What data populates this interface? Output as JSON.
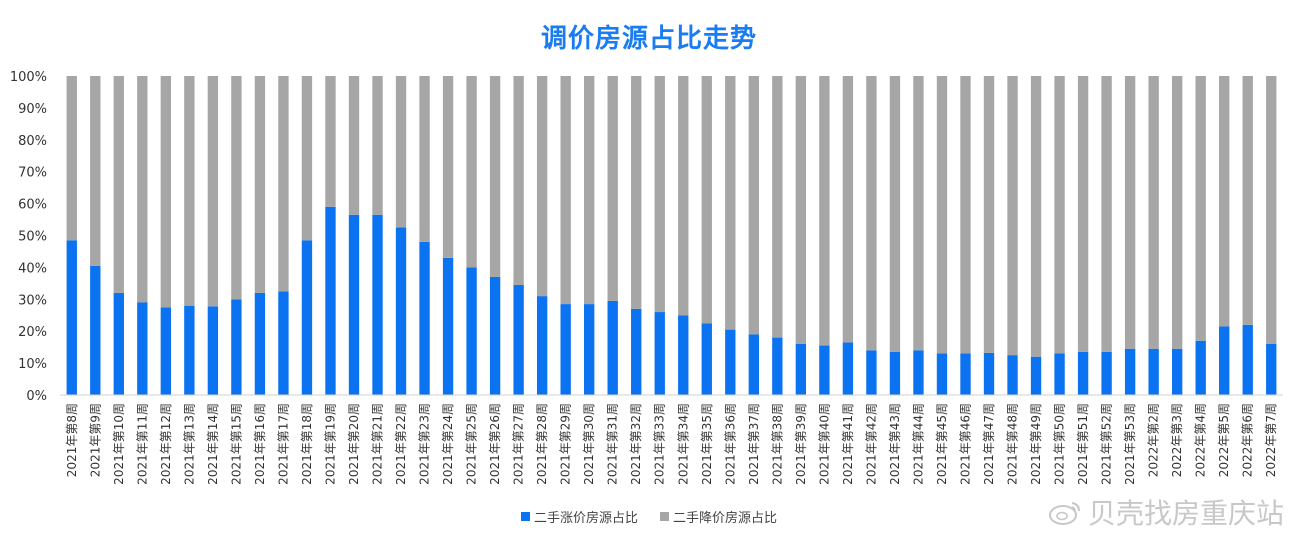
{
  "title": "调价房源占比走势",
  "watermark": "贝壳找房重庆站",
  "colors": {
    "up": "#0b72f0",
    "down": "#a6a6a6",
    "title": "#1a7cf2"
  },
  "chart_data": {
    "type": "bar",
    "stacked": true,
    "ylim": [
      0,
      100
    ],
    "yticks": [
      "0%",
      "10%",
      "20%",
      "30%",
      "40%",
      "50%",
      "60%",
      "70%",
      "80%",
      "90%",
      "100%"
    ],
    "legend_position": "bottom",
    "grid": false,
    "categories": [
      "2021年第8周",
      "2021年第9周",
      "2021年第10周",
      "2021年第11周",
      "2021年第12周",
      "2021年第13周",
      "2021年第14周",
      "2021年第15周",
      "2021年第16周",
      "2021年第17周",
      "2021年第18周",
      "2021年第19周",
      "2021年第20周",
      "2021年第21周",
      "2021年第22周",
      "2021年第23周",
      "2021年第24周",
      "2021年第25周",
      "2021年第26周",
      "2021年第27周",
      "2021年第28周",
      "2021年第29周",
      "2021年第30周",
      "2021年第31周",
      "2021年第32周",
      "2021年第33周",
      "2021年第34周",
      "2021年第35周",
      "2021年第36周",
      "2021年第37周",
      "2021年第38周",
      "2021年第39周",
      "2021年第40周",
      "2021年第41周",
      "2021年第42周",
      "2021年第43周",
      "2021年第44周",
      "2021年第45周",
      "2021年第46周",
      "2021年第47周",
      "2021年第48周",
      "2021年第49周",
      "2021年第50周",
      "2021年第51周",
      "2021年第52周",
      "2021年第53周",
      "2022年第2周",
      "2022年第3周",
      "2022年第4周",
      "2022年第5周",
      "2022年第6周",
      "2022年第7周"
    ],
    "series": [
      {
        "name": "二手涨价房源占比",
        "values": [
          48.5,
          40.5,
          32,
          29,
          27.5,
          28,
          27.8,
          30,
          32,
          32.5,
          48.5,
          59,
          56.5,
          56.5,
          52.5,
          48,
          43,
          40,
          37,
          34.5,
          31,
          28.5,
          28.5,
          29.5,
          27,
          26,
          25,
          22.5,
          20.5,
          19,
          18,
          16,
          15.5,
          16.5,
          14,
          13.5,
          14,
          13,
          13,
          13.2,
          12.5,
          12,
          13,
          13.5,
          13.5,
          14.5,
          14.5,
          14.5,
          17,
          21.5,
          22,
          16
        ]
      },
      {
        "name": "二手降价房源占比",
        "values": [
          51.5,
          59.5,
          68,
          71,
          72.5,
          72,
          72.2,
          70,
          68,
          67.5,
          51.5,
          41,
          43.5,
          43.5,
          47.5,
          52,
          57,
          60,
          63,
          65.5,
          69,
          71.5,
          71.5,
          70.5,
          73,
          74,
          75,
          77.5,
          79.5,
          81,
          82,
          84,
          84.5,
          83.5,
          86,
          86.5,
          86,
          87,
          87,
          86.8,
          87.5,
          88,
          87,
          86.5,
          86.5,
          85.5,
          85.5,
          85.5,
          83,
          78.5,
          78,
          84
        ]
      }
    ]
  }
}
